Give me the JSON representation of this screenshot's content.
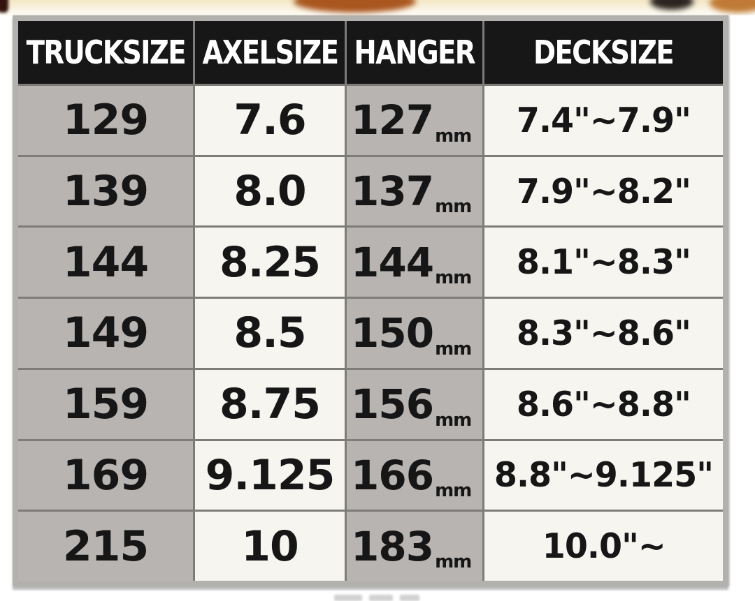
{
  "table": {
    "columns": [
      {
        "key": "trucksize",
        "label": "TRUCKSIZE"
      },
      {
        "key": "axelsize",
        "label": "AXELSIZE"
      },
      {
        "key": "hanger",
        "label": "HANGER"
      },
      {
        "key": "decksize",
        "label": "DECKSIZE"
      }
    ],
    "hanger_unit": "mm",
    "rows": [
      {
        "trucksize": "129",
        "axelsize": "7.6",
        "hanger": "127",
        "decksize": "7.4\"~7.9\""
      },
      {
        "trucksize": "139",
        "axelsize": "8.0",
        "hanger": "137",
        "decksize": "7.9\"~8.2\""
      },
      {
        "trucksize": "144",
        "axelsize": "8.25",
        "hanger": "144",
        "decksize": "8.1\"~8.3\""
      },
      {
        "trucksize": "149",
        "axelsize": "8.5",
        "hanger": "150",
        "decksize": "8.3\"~8.6\""
      },
      {
        "trucksize": "159",
        "axelsize": "8.75",
        "hanger": "156",
        "decksize": "8.6\"~8.8\""
      },
      {
        "trucksize": "169",
        "axelsize": "9.125",
        "hanger": "166",
        "decksize": "8.8\"~9.125\""
      },
      {
        "trucksize": "215",
        "axelsize": "10",
        "hanger": "183",
        "decksize": "10.0\"~"
      }
    ]
  },
  "chart_data": {
    "type": "table",
    "title": "",
    "columns": [
      "TRUCKSIZE",
      "AXELSIZE",
      "HANGER",
      "DECKSIZE"
    ],
    "rows": [
      [
        "129",
        "7.6",
        "127mm",
        "7.4\"~7.9\""
      ],
      [
        "139",
        "8.0",
        "137mm",
        "7.9\"~8.2\""
      ],
      [
        "144",
        "8.25",
        "144mm",
        "8.1\"~8.3\""
      ],
      [
        "149",
        "8.5",
        "150mm",
        "8.3\"~8.6\""
      ],
      [
        "159",
        "8.75",
        "156mm",
        "8.6\"~8.8\""
      ],
      [
        "169",
        "9.125",
        "166mm",
        "8.8\"~9.125\""
      ],
      [
        "215",
        "10",
        "183mm",
        "10.0\"~"
      ]
    ]
  },
  "colors": {
    "header_bg": "#171717",
    "header_text": "#ffffff",
    "gray_cell": "#b7b4b1",
    "white_cell": "#f6f5f0",
    "frame": "#b3b1ae",
    "separator": "#7e7c79",
    "body_text": "#161616",
    "photo_cream": "#f3e7c4",
    "photo_orange": "#a9561f"
  }
}
